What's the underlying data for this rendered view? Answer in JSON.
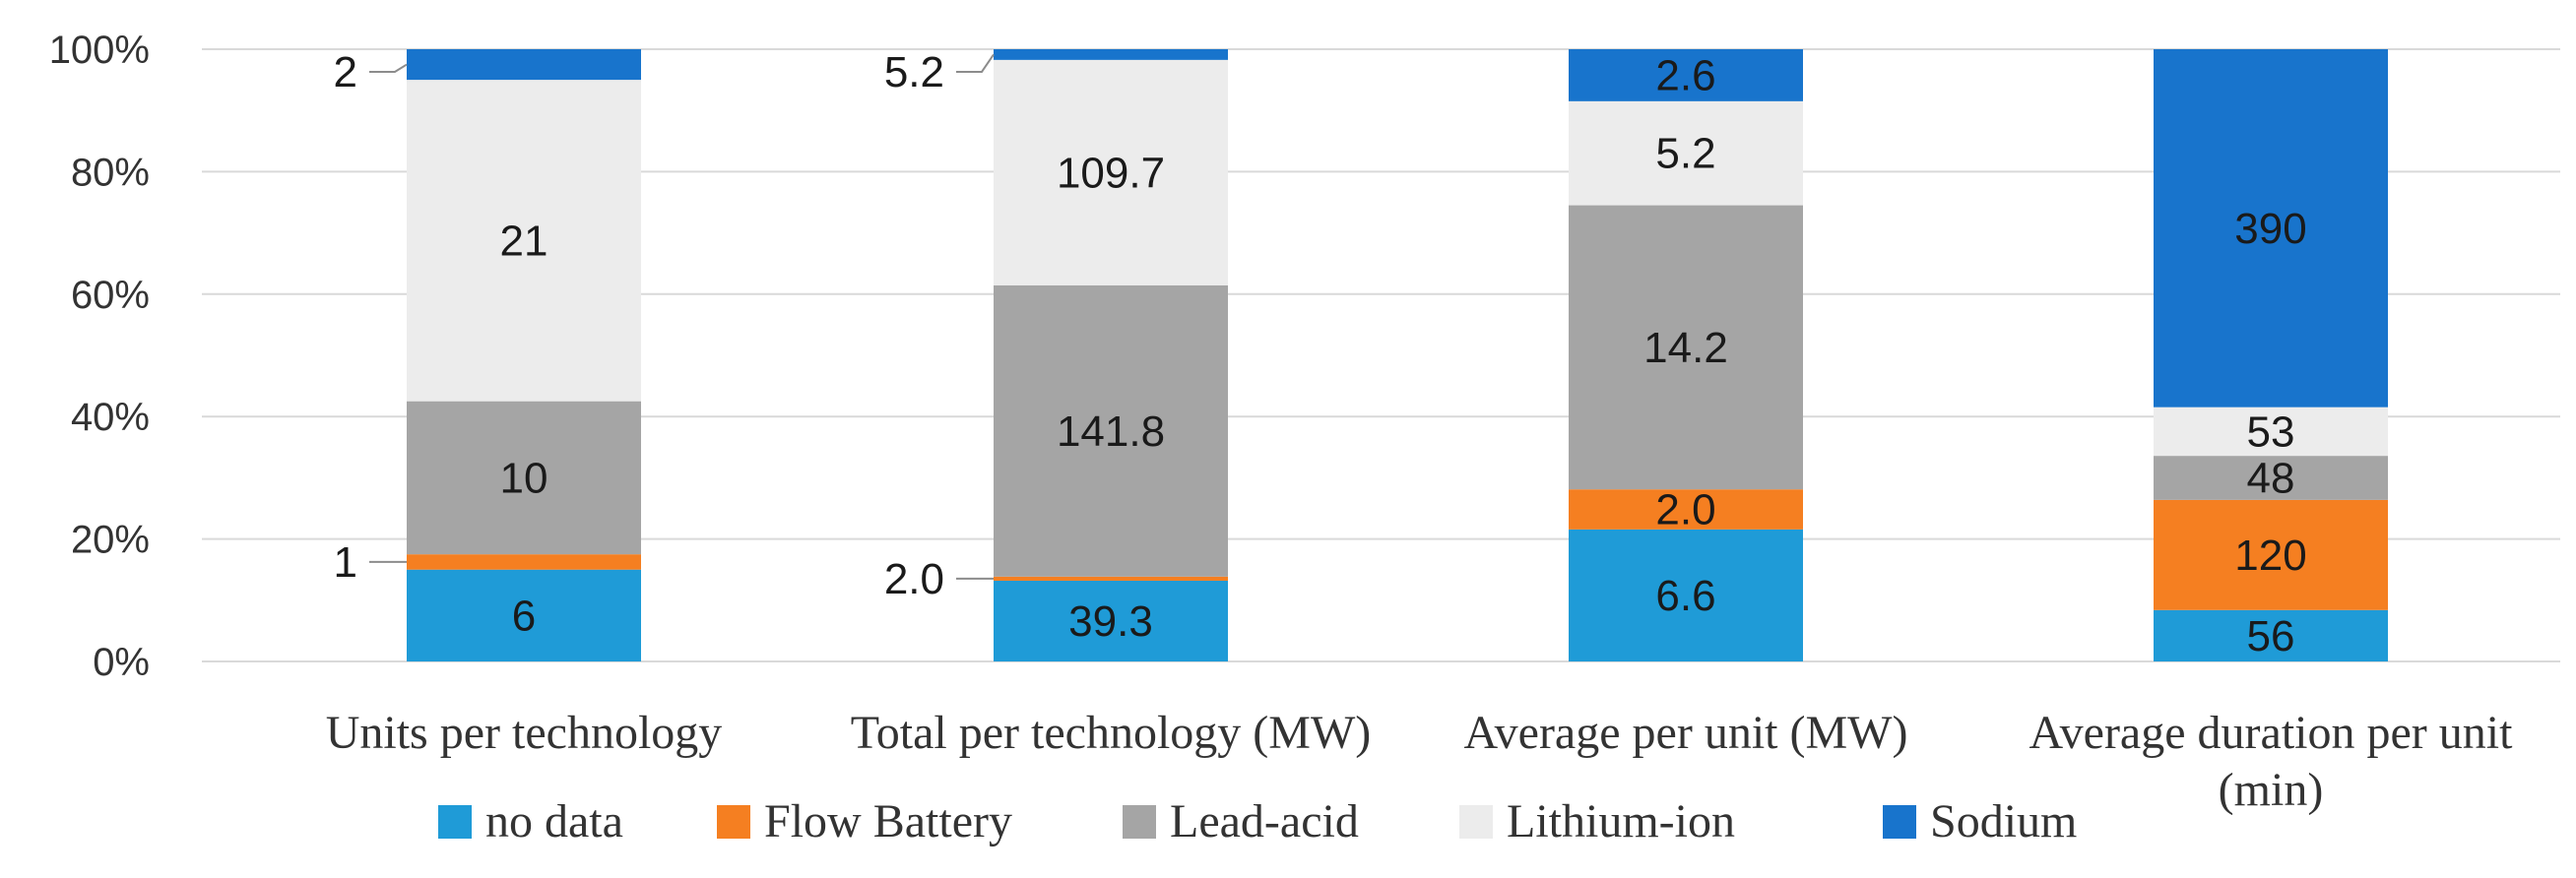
{
  "chart_data": {
    "type": "bar",
    "stacked": true,
    "normalized": true,
    "categories": [
      "Units per technology",
      "Total per technology (MW)",
      "Average per unit (MW)",
      "Average duration per unit (min)"
    ],
    "series": [
      {
        "name": "no data",
        "color": "#1f9bd7",
        "values": [
          6,
          39.3,
          6.6,
          56
        ],
        "labels": [
          "6",
          "39.3",
          "6.6",
          "56"
        ]
      },
      {
        "name": "Flow Battery",
        "color": "#f57f21",
        "values": [
          1,
          2.0,
          2.0,
          120
        ],
        "labels": [
          "1",
          "2.0",
          "2.0",
          "120"
        ]
      },
      {
        "name": "Lead-acid",
        "color": "#a5a5a5",
        "values": [
          10,
          141.8,
          14.2,
          48
        ],
        "labels": [
          "10",
          "141.8",
          "14.2",
          "48"
        ]
      },
      {
        "name": "Lithium-ion",
        "color": "#ececec",
        "values": [
          21,
          109.7,
          5.2,
          53
        ],
        "labels": [
          "21",
          "109.7",
          "5.2",
          "53"
        ]
      },
      {
        "name": "Sodium",
        "color": "#1874cc",
        "values": [
          2,
          5.2,
          2.6,
          390
        ],
        "labels": [
          "2",
          "5.2",
          "2.6",
          "390"
        ]
      }
    ],
    "yticks": [
      "0%",
      "20%",
      "40%",
      "60%",
      "80%",
      "100%"
    ],
    "ylim": [
      0,
      100
    ],
    "grid": true,
    "legend": "bottom"
  }
}
